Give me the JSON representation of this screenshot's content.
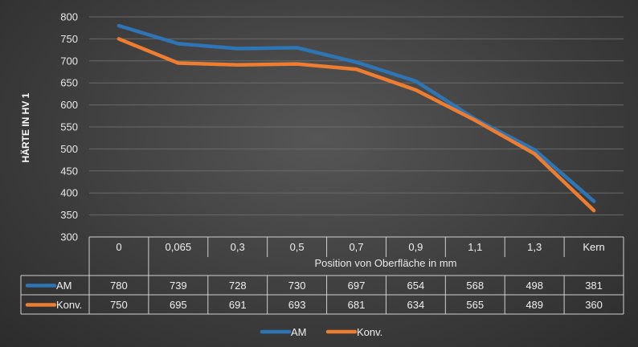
{
  "chart_data": {
    "type": "line",
    "ylabel": "HÄRTE IN HV 1",
    "xlabel": "Position von Oberfläche in mm",
    "categories": [
      "0",
      "0,065",
      "0,3",
      "0,5",
      "0,7",
      "0,9",
      "1,1",
      "1,3",
      "Kern"
    ],
    "ylim": [
      300,
      800
    ],
    "yticks": [
      300,
      350,
      400,
      450,
      500,
      550,
      600,
      650,
      700,
      750,
      800
    ],
    "grid": true,
    "legend_position": "bottom",
    "data_table": true,
    "series": [
      {
        "name": "AM",
        "color": "#2e75b6",
        "values": [
          780,
          739,
          728,
          730,
          697,
          654,
          568,
          498,
          381
        ]
      },
      {
        "name": "Konv.",
        "color": "#ed7d31",
        "values": [
          750,
          695,
          691,
          693,
          681,
          634,
          565,
          489,
          360
        ]
      }
    ]
  }
}
